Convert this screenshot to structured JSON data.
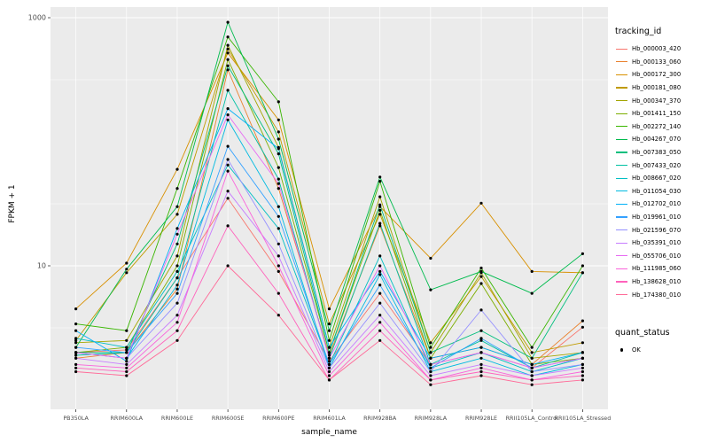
{
  "legend": {
    "tracking_title": "tracking_id",
    "quant_title": "quant_status",
    "quant_label": "OK"
  },
  "chart_data": {
    "type": "line",
    "title": "",
    "xlabel": "sample_name",
    "ylabel": "FPKM + 1",
    "y_scale": "log10",
    "y_ticks": [
      1000,
      10
    ],
    "y_tick_labels": [
      "1000",
      "10"
    ],
    "ylim": [
      0.7,
      1200
    ],
    "grid": true,
    "legend_position": "right",
    "panel_background": "#EBEBEB",
    "gridline_color": "#FFFFFF",
    "point_color": "#000000",
    "tick_text_color": "#4D4D4D",
    "categories": [
      "PB350LA",
      "RRIM600LA",
      "RRIM600LE",
      "RRIM600SE",
      "RRIM600PE",
      "RRIM601LA",
      "RRIM928BA",
      "RRIM928LA",
      "RRIM928LE",
      "RRII105LA_Control",
      "RRII105LA_Stressed"
    ],
    "series": [
      {
        "name": "Hb_000003_420",
        "color": "#F8766D",
        "values": [
          2.0,
          2.1,
          8,
          35,
          9,
          1.7,
          6,
          1.6,
          2.0,
          1.5,
          3.2
        ]
      },
      {
        "name": "Hb_000133_060",
        "color": "#EA8331",
        "values": [
          1.8,
          2.0,
          6.5,
          380,
          42,
          1.9,
          21,
          1.8,
          2.2,
          1.6,
          3.6
        ]
      },
      {
        "name": "Hb_000172_300",
        "color": "#D89000",
        "values": [
          4.5,
          10.5,
          60,
          520,
          150,
          4.5,
          30,
          11.5,
          32,
          9,
          8.8
        ]
      },
      {
        "name": "Hb_000181_080",
        "color": "#C09B00",
        "values": [
          2.5,
          8.8,
          26,
          560,
          120,
          3.4,
          26,
          2.4,
          8.2,
          2.0,
          2.4
        ]
      },
      {
        "name": "Hb_000347_370",
        "color": "#A3A500",
        "values": [
          2.4,
          2.5,
          12,
          600,
          90,
          2.2,
          36,
          2.0,
          8.8,
          1.8,
          2.0
        ]
      },
      {
        "name": "Hb_001411_150",
        "color": "#7CAE00",
        "values": [
          2.0,
          2.2,
          10,
          460,
          62,
          2.0,
          28,
          1.8,
          7.2,
          1.6,
          1.8
        ]
      },
      {
        "name": "Hb_002272_140",
        "color": "#39B600",
        "values": [
          3.4,
          3.0,
          42,
          700,
          210,
          2.5,
          48,
          2.2,
          9.6,
          2.2,
          10
        ]
      },
      {
        "name": "Hb_004267_070",
        "color": "#00BB4E",
        "values": [
          2.2,
          9.4,
          30,
          920,
          105,
          3.0,
          52,
          6.4,
          9.0,
          6.0,
          12.5
        ]
      },
      {
        "name": "Hb_007383_050",
        "color": "#00BF7D",
        "values": [
          2.0,
          2.0,
          15,
          410,
          80,
          2.0,
          31,
          2.0,
          3.0,
          1.8,
          8.8
        ]
      },
      {
        "name": "Hb_007433_020",
        "color": "#00C1A3",
        "values": [
          1.9,
          2.0,
          8,
          260,
          50,
          1.8,
          22,
          1.6,
          2.5,
          1.5,
          2.0
        ]
      },
      {
        "name": "Hb_008667_020",
        "color": "#00BFC4",
        "values": [
          2.6,
          2.2,
          9,
          65,
          20,
          1.6,
          12,
          1.5,
          2.0,
          1.4,
          1.8
        ]
      },
      {
        "name": "Hb_011054_030",
        "color": "#00BAE0",
        "values": [
          2.0,
          1.8,
          7,
          150,
          30,
          1.5,
          8.5,
          1.4,
          1.8,
          1.3,
          1.6
        ]
      },
      {
        "name": "Hb_012702_010",
        "color": "#00B0F6",
        "values": [
          3.0,
          1.7,
          20,
          185,
          88,
          2.2,
          9,
          1.8,
          2.2,
          1.6,
          2.0
        ]
      },
      {
        "name": "Hb_019961_010",
        "color": "#35A2FF",
        "values": [
          2.2,
          2.0,
          6,
          92,
          25,
          1.6,
          7,
          1.5,
          2.6,
          1.5,
          1.8
        ]
      },
      {
        "name": "Hb_021596_070",
        "color": "#9590FF",
        "values": [
          2.0,
          1.8,
          5,
          72,
          15,
          1.5,
          5,
          1.4,
          4.4,
          1.4,
          1.6
        ]
      },
      {
        "name": "Hb_035391_010",
        "color": "#C77CFF",
        "values": [
          1.8,
          1.6,
          4,
          40,
          12,
          1.4,
          4,
          1.3,
          1.6,
          1.3,
          1.5
        ]
      },
      {
        "name": "Hb_055706_010",
        "color": "#E76BF3",
        "values": [
          2.0,
          1.8,
          18,
          165,
          46,
          1.8,
          10,
          1.6,
          2.0,
          1.5,
          1.8
        ]
      },
      {
        "name": "Hb_111985_060",
        "color": "#FA62DB",
        "values": [
          1.6,
          1.5,
          3.5,
          58,
          10,
          1.3,
          3.5,
          1.2,
          1.5,
          1.2,
          1.4
        ]
      },
      {
        "name": "Hb_138628_010",
        "color": "#FF62BC",
        "values": [
          1.5,
          1.4,
          3.0,
          21,
          6,
          1.2,
          3.0,
          1.2,
          1.4,
          1.2,
          1.3
        ]
      },
      {
        "name": "Hb_174380_010",
        "color": "#FF6A98",
        "values": [
          1.4,
          1.3,
          2.5,
          10,
          4,
          1.2,
          2.5,
          1.1,
          1.3,
          1.1,
          1.2
        ]
      }
    ]
  }
}
